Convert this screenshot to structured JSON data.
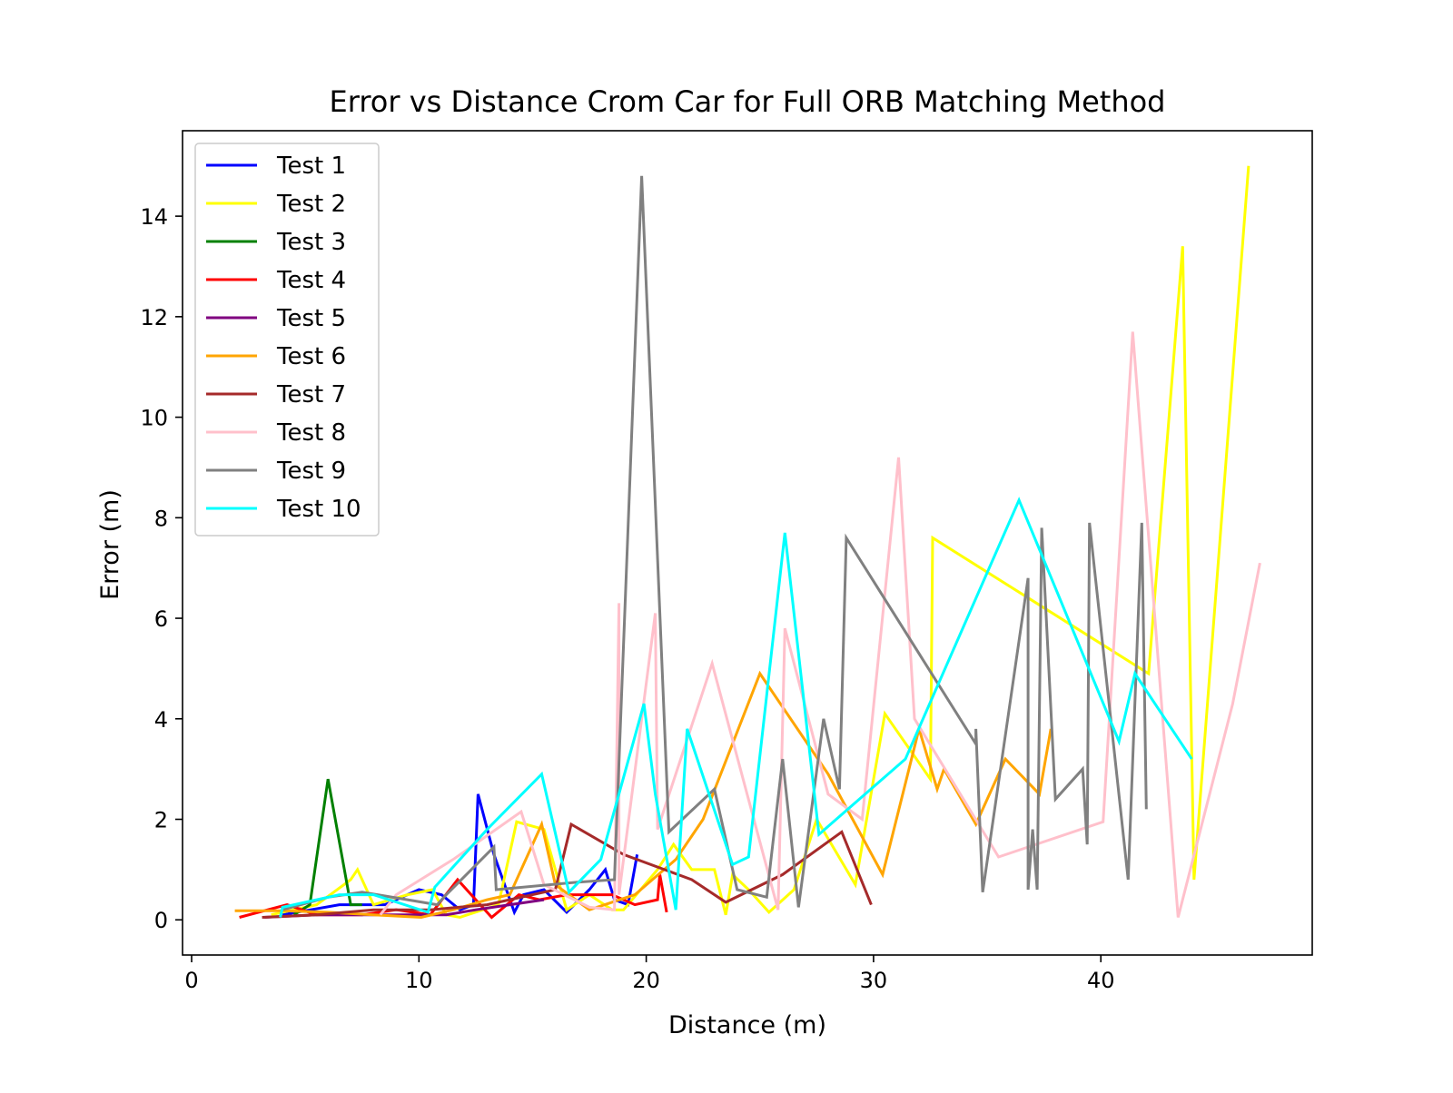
{
  "chart_data": {
    "type": "line",
    "title": "Error vs Distance Crom Car for Full ORB Matching Method",
    "xlabel": "Distance (m)",
    "ylabel": "Error (m)",
    "xlim": [
      -0.4,
      49.3
    ],
    "ylim": [
      -0.7,
      15.7
    ],
    "xticks": [
      0,
      10,
      20,
      30,
      40
    ],
    "yticks": [
      0,
      2,
      4,
      6,
      8,
      10,
      12,
      14
    ],
    "grid": false,
    "legend_position": "upper-left",
    "series": [
      {
        "name": "Test 1",
        "color": "#0000ff",
        "points": [
          [
            4.0,
            0.1
          ],
          [
            6.5,
            0.3
          ],
          [
            8.5,
            0.3
          ],
          [
            10.0,
            0.6
          ],
          [
            11.0,
            0.5
          ],
          [
            11.8,
            0.2
          ],
          [
            12.4,
            0.3
          ],
          [
            12.6,
            2.5
          ],
          [
            13.3,
            1.3
          ],
          [
            14.2,
            0.15
          ],
          [
            14.6,
            0.5
          ],
          [
            15.5,
            0.6
          ],
          [
            16.5,
            0.15
          ],
          [
            17.5,
            0.6
          ],
          [
            18.2,
            1.0
          ],
          [
            18.6,
            0.4
          ],
          [
            19.2,
            0.3
          ],
          [
            19.6,
            1.3
          ]
        ]
      },
      {
        "name": "Test 2",
        "color": "#ffff00",
        "points": [
          [
            3.5,
            0.1
          ],
          [
            5.5,
            0.3
          ],
          [
            7.0,
            0.8
          ],
          [
            7.3,
            1.0
          ],
          [
            8.0,
            0.3
          ],
          [
            9.5,
            0.5
          ],
          [
            10.6,
            0.6
          ],
          [
            11.2,
            0.1
          ],
          [
            11.8,
            0.05
          ],
          [
            13.5,
            0.3
          ],
          [
            14.3,
            1.95
          ],
          [
            15.5,
            1.8
          ],
          [
            16.5,
            0.2
          ],
          [
            17.5,
            0.5
          ],
          [
            18.5,
            0.2
          ],
          [
            19.0,
            0.2
          ],
          [
            20.5,
            1.0
          ],
          [
            21.2,
            1.5
          ],
          [
            22.0,
            1.0
          ],
          [
            23.0,
            1.0
          ],
          [
            23.5,
            0.1
          ],
          [
            23.8,
            0.9
          ],
          [
            24.5,
            0.6
          ],
          [
            25.4,
            0.15
          ],
          [
            26.5,
            0.6
          ],
          [
            27.5,
            2.0
          ],
          [
            29.2,
            0.7
          ],
          [
            30.5,
            4.1
          ],
          [
            32.5,
            2.8
          ],
          [
            32.6,
            7.6
          ],
          [
            42.1,
            4.9
          ],
          [
            43.6,
            13.4
          ],
          [
            44.1,
            0.8
          ],
          [
            46.5,
            15.0
          ]
        ]
      },
      {
        "name": "Test 3",
        "color": "#008000",
        "points": [
          [
            4.5,
            0.1
          ],
          [
            5.2,
            0.3
          ],
          [
            6.0,
            2.8
          ],
          [
            7.0,
            0.3
          ],
          [
            7.5,
            0.3
          ]
        ]
      },
      {
        "name": "Test 4",
        "color": "#ff0000",
        "points": [
          [
            2.1,
            0.05
          ],
          [
            4.2,
            0.3
          ],
          [
            5.5,
            0.1
          ],
          [
            7.5,
            0.1
          ],
          [
            9.0,
            0.2
          ],
          [
            10.5,
            0.1
          ],
          [
            11.7,
            0.8
          ],
          [
            13.2,
            0.05
          ],
          [
            14.4,
            0.5
          ],
          [
            15.3,
            0.4
          ],
          [
            16.5,
            0.5
          ],
          [
            18.5,
            0.5
          ],
          [
            19.5,
            0.3
          ],
          [
            20.5,
            0.4
          ],
          [
            20.6,
            0.9
          ],
          [
            20.9,
            0.15
          ]
        ]
      },
      {
        "name": "Test 5",
        "color": "#800080",
        "points": [
          [
            3.2,
            0.05
          ],
          [
            5.5,
            0.1
          ],
          [
            7.5,
            0.1
          ],
          [
            9.5,
            0.1
          ],
          [
            11.2,
            0.1
          ],
          [
            12.5,
            0.2
          ],
          [
            14.0,
            0.3
          ],
          [
            15.5,
            0.4
          ]
        ]
      },
      {
        "name": "Test 6",
        "color": "#ffa500",
        "points": [
          [
            1.9,
            0.18
          ],
          [
            4.0,
            0.18
          ],
          [
            6.0,
            0.15
          ],
          [
            8.0,
            0.1
          ],
          [
            10.1,
            0.05
          ],
          [
            11.5,
            0.2
          ],
          [
            13.0,
            0.4
          ],
          [
            14.0,
            0.5
          ],
          [
            15.4,
            1.9
          ],
          [
            16.0,
            0.7
          ],
          [
            17.5,
            0.2
          ],
          [
            19.5,
            0.5
          ],
          [
            21.3,
            1.2
          ],
          [
            22.5,
            2.0
          ],
          [
            25.0,
            4.9
          ],
          [
            28.0,
            2.9
          ],
          [
            30.4,
            0.9
          ],
          [
            32.0,
            3.8
          ],
          [
            32.8,
            2.6
          ],
          [
            33.1,
            3.0
          ],
          [
            34.5,
            1.9
          ],
          [
            35.8,
            3.2
          ],
          [
            37.3,
            2.5
          ],
          [
            37.8,
            3.8
          ]
        ]
      },
      {
        "name": "Test 7",
        "color": "#a52a2a",
        "points": [
          [
            3.1,
            0.05
          ],
          [
            5.5,
            0.1
          ],
          [
            8.0,
            0.2
          ],
          [
            10.5,
            0.2
          ],
          [
            13.0,
            0.3
          ],
          [
            16.0,
            0.6
          ],
          [
            16.7,
            1.9
          ],
          [
            19.0,
            1.3
          ],
          [
            22.0,
            0.8
          ],
          [
            23.5,
            0.35
          ],
          [
            26.0,
            0.9
          ],
          [
            28.6,
            1.75
          ],
          [
            29.9,
            0.3
          ]
        ]
      },
      {
        "name": "Test 8",
        "color": "#ffc0cb",
        "points": [
          [
            8.3,
            0.1
          ],
          [
            9.0,
            0.5
          ],
          [
            11.5,
            1.2
          ],
          [
            14.5,
            2.15
          ],
          [
            15.5,
            0.7
          ],
          [
            17.5,
            0.25
          ],
          [
            18.6,
            0.2
          ],
          [
            18.8,
            6.3
          ],
          [
            18.8,
            0.5
          ],
          [
            20.4,
            6.1
          ],
          [
            20.5,
            1.8
          ],
          [
            22.9,
            5.1
          ],
          [
            25.8,
            0.2
          ],
          [
            26.1,
            5.8
          ],
          [
            28.0,
            2.5
          ],
          [
            29.5,
            2.0
          ],
          [
            31.1,
            9.2
          ],
          [
            31.8,
            4.0
          ],
          [
            35.5,
            1.25
          ],
          [
            40.1,
            1.95
          ],
          [
            41.4,
            11.7
          ],
          [
            43.4,
            0.05
          ],
          [
            45.8,
            4.3
          ],
          [
            47.0,
            7.1
          ]
        ]
      },
      {
        "name": "Test 9",
        "color": "#808080",
        "points": [
          [
            4.0,
            0.2
          ],
          [
            6.0,
            0.45
          ],
          [
            7.5,
            0.55
          ],
          [
            9.5,
            0.4
          ],
          [
            10.8,
            0.3
          ],
          [
            11.2,
            0.5
          ],
          [
            13.3,
            1.45
          ],
          [
            13.4,
            0.6
          ],
          [
            17.0,
            0.75
          ],
          [
            18.6,
            0.8
          ],
          [
            19.8,
            14.8
          ],
          [
            21.0,
            1.75
          ],
          [
            23.0,
            2.6
          ],
          [
            24.0,
            0.6
          ],
          [
            25.3,
            0.45
          ],
          [
            25.5,
            1.25
          ],
          [
            26.0,
            3.2
          ],
          [
            26.7,
            0.25
          ],
          [
            27.8,
            4.0
          ],
          [
            28.5,
            2.6
          ],
          [
            28.8,
            7.6
          ],
          [
            34.5,
            3.5
          ],
          [
            34.5,
            3.8
          ],
          [
            34.8,
            0.55
          ],
          [
            36.8,
            6.8
          ],
          [
            36.8,
            0.6
          ],
          [
            37.0,
            1.8
          ],
          [
            37.2,
            0.6
          ],
          [
            37.4,
            7.8
          ],
          [
            38.0,
            2.4
          ],
          [
            39.2,
            3.0
          ],
          [
            39.4,
            1.5
          ],
          [
            39.5,
            7.9
          ],
          [
            41.2,
            0.8
          ],
          [
            41.8,
            7.9
          ],
          [
            42.0,
            2.2
          ]
        ]
      },
      {
        "name": "Test 10",
        "color": "#00ffff",
        "points": [
          [
            3.9,
            0.05
          ],
          [
            4.0,
            0.25
          ],
          [
            6.5,
            0.5
          ],
          [
            8.0,
            0.5
          ],
          [
            10.4,
            0.15
          ],
          [
            10.7,
            0.65
          ],
          [
            13.0,
            1.8
          ],
          [
            15.4,
            2.9
          ],
          [
            16.6,
            0.55
          ],
          [
            18.0,
            1.2
          ],
          [
            19.9,
            4.3
          ],
          [
            20.4,
            2.5
          ],
          [
            21.3,
            0.2
          ],
          [
            21.8,
            3.8
          ],
          [
            23.8,
            1.1
          ],
          [
            24.5,
            1.25
          ],
          [
            26.1,
            7.7
          ],
          [
            27.6,
            1.7
          ],
          [
            31.4,
            3.2
          ],
          [
            36.4,
            8.35
          ],
          [
            40.8,
            3.55
          ],
          [
            41.5,
            4.9
          ],
          [
            44.0,
            3.2
          ]
        ]
      }
    ]
  }
}
